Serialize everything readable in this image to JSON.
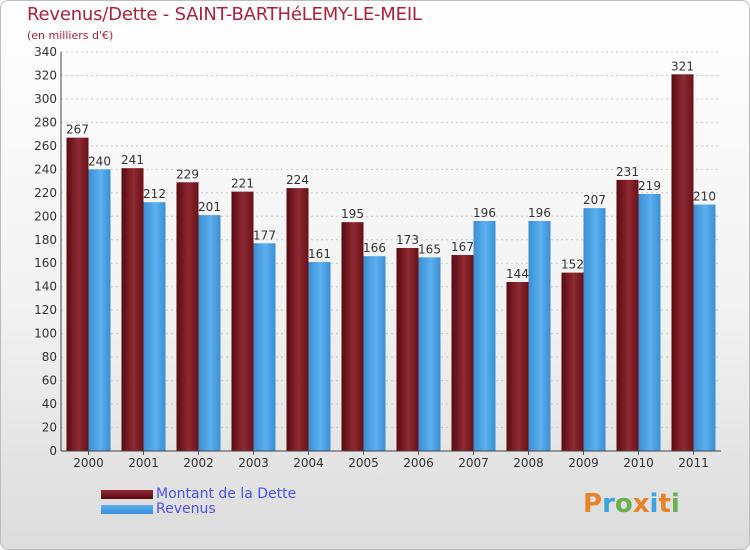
{
  "chart_data": {
    "type": "bar",
    "title": "Revenus/Dette - SAINT-BARTHéLEMY-LE-MEIL",
    "subtitle": "(en milliers d'€)",
    "categories": [
      "2000",
      "2001",
      "2002",
      "2003",
      "2004",
      "2005",
      "2006",
      "2007",
      "2008",
      "2009",
      "2010",
      "2011"
    ],
    "series": [
      {
        "name": "Montant de la Dette",
        "values": [
          267,
          241,
          229,
          221,
          224,
          195,
          173,
          167,
          144,
          152,
          231,
          321
        ]
      },
      {
        "name": "Revenus",
        "values": [
          240,
          212,
          201,
          177,
          161,
          166,
          165,
          196,
          196,
          207,
          219,
          210
        ]
      }
    ],
    "ylim": [
      0,
      340
    ],
    "yticks": [
      0,
      20,
      40,
      60,
      80,
      100,
      120,
      140,
      160,
      180,
      200,
      220,
      240,
      260,
      280,
      300,
      320,
      340
    ],
    "grid": true,
    "legend_position": "bottom-left",
    "colors": {
      "dette": "#7a1a22",
      "revenus": "#4a9fe2"
    }
  },
  "legend": {
    "items": [
      {
        "label": "Montant de la Dette"
      },
      {
        "label": "Revenus"
      }
    ]
  },
  "logo": {
    "letters": [
      "P",
      "r",
      "o",
      "x",
      "i",
      "t",
      "i"
    ],
    "colors": [
      "#e8832a",
      "#3da4dc",
      "#6ab04c",
      "#e8832a",
      "#3da4dc",
      "#e8832a",
      "#6ab04c"
    ]
  }
}
